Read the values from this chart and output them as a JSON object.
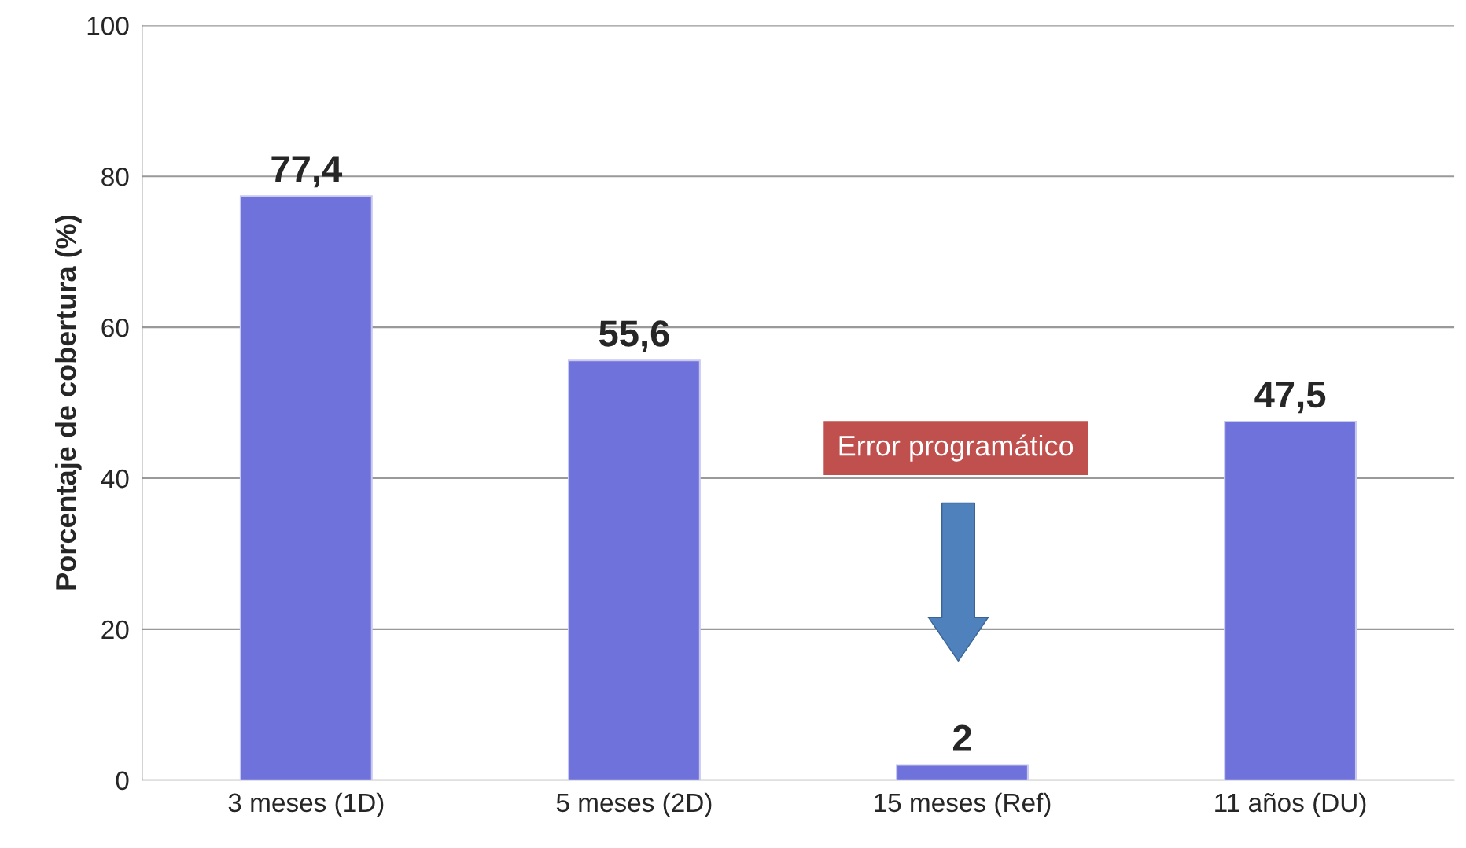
{
  "chart_data": {
    "type": "bar",
    "categories": [
      "3 meses (1D)",
      "5 meses (2D)",
      "15 meses (Ref)",
      "11 años (DU)"
    ],
    "values": [
      77.4,
      55.6,
      2,
      47.5
    ],
    "value_labels": [
      "77,4",
      "55,6",
      "2",
      "47,5"
    ],
    "color": "#6f72da",
    "ylabel": "Porcentaje de cobertura (%)",
    "ylim": [
      0,
      100
    ],
    "yticks": [
      0,
      20,
      40,
      60,
      80,
      100
    ],
    "grid": "y",
    "annotations": [
      "Error programático"
    ]
  }
}
